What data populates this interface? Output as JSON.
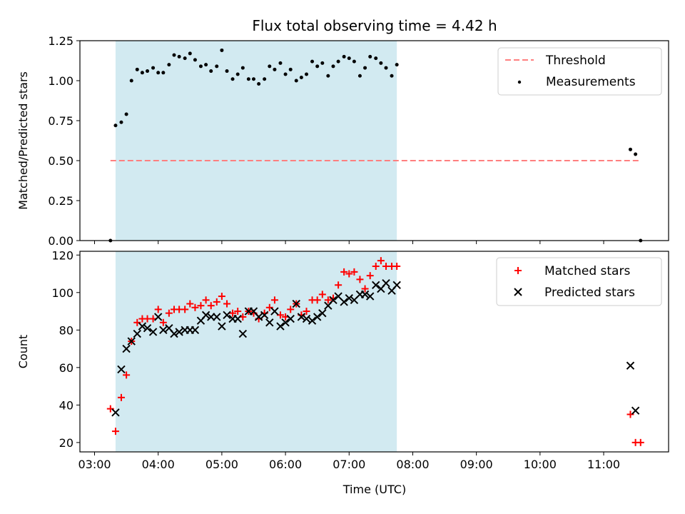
{
  "chart_data": {
    "type": "scatter",
    "title": "Flux total observing time = 4.42 h",
    "xlabel": "Time (UTC)",
    "x_ticks": [
      "03:00",
      "04:00",
      "05:00",
      "06:00",
      "07:00",
      "08:00",
      "09:00",
      "10:00",
      "11:00"
    ],
    "x_tick_hours": [
      3,
      4,
      5,
      6,
      7,
      8,
      9,
      10,
      11
    ],
    "x_range_hours": [
      2.77,
      12.02
    ],
    "shaded_region_hours": [
      3.33,
      7.75
    ],
    "colors": {
      "shade": "#add8e6",
      "threshold": "#ff7f7f",
      "measurements": "#000000",
      "matched": "#ff0000",
      "predicted": "#000000"
    },
    "panels": [
      {
        "ylabel": "Matched/Predicted stars",
        "ylim": [
          0,
          1.25
        ],
        "y_ticks": [
          "0.00",
          "0.25",
          "0.50",
          "0.75",
          "1.00",
          "1.25"
        ],
        "y_tick_values": [
          0,
          0.25,
          0.5,
          0.75,
          1.0,
          1.25
        ],
        "legend_position": "upper right",
        "threshold": {
          "name": "Threshold",
          "value": 0.5,
          "x_range_hours": [
            3.25,
            11.58
          ]
        },
        "series": [
          {
            "name": "Measurements",
            "marker": "dot",
            "x_hours": [
              3.25,
              3.33,
              3.42,
              3.5,
              3.58,
              3.67,
              3.75,
              3.83,
              3.92,
              4.0,
              4.08,
              4.17,
              4.25,
              4.33,
              4.42,
              4.5,
              4.58,
              4.67,
              4.75,
              4.83,
              4.92,
              5.0,
              5.08,
              5.17,
              5.25,
              5.33,
              5.42,
              5.5,
              5.58,
              5.67,
              5.75,
              5.83,
              5.92,
              6.0,
              6.08,
              6.17,
              6.25,
              6.33,
              6.42,
              6.5,
              6.58,
              6.67,
              6.75,
              6.83,
              6.92,
              7.0,
              7.08,
              7.17,
              7.25,
              7.33,
              7.42,
              7.5,
              7.58,
              7.67,
              7.75,
              11.42,
              11.5,
              11.58
            ],
            "y": [
              0.0,
              0.72,
              0.74,
              0.79,
              1.0,
              1.07,
              1.05,
              1.06,
              1.08,
              1.05,
              1.05,
              1.1,
              1.16,
              1.15,
              1.14,
              1.17,
              1.13,
              1.09,
              1.1,
              1.06,
              1.09,
              1.19,
              1.06,
              1.01,
              1.04,
              1.08,
              1.01,
              1.01,
              0.98,
              1.01,
              1.09,
              1.07,
              1.11,
              1.04,
              1.07,
              1.0,
              1.02,
              1.04,
              1.12,
              1.09,
              1.11,
              1.03,
              1.09,
              1.12,
              1.15,
              1.14,
              1.12,
              1.03,
              1.08,
              1.15,
              1.14,
              1.11,
              1.08,
              1.03,
              1.1,
              0.57,
              0.54,
              0.0
            ]
          }
        ]
      },
      {
        "ylabel": "Count",
        "ylim": [
          15,
          122
        ],
        "y_ticks": [
          "20",
          "40",
          "60",
          "80",
          "100",
          "120"
        ],
        "y_tick_values": [
          20,
          40,
          60,
          80,
          100,
          120
        ],
        "legend_position": "upper right",
        "series": [
          {
            "name": "Matched stars",
            "marker": "plus",
            "x_hours": [
              3.25,
              3.33,
              3.42,
              3.5,
              3.58,
              3.67,
              3.75,
              3.83,
              3.92,
              4.0,
              4.08,
              4.17,
              4.25,
              4.33,
              4.42,
              4.5,
              4.58,
              4.67,
              4.75,
              4.83,
              4.92,
              5.0,
              5.08,
              5.17,
              5.25,
              5.33,
              5.42,
              5.5,
              5.58,
              5.67,
              5.75,
              5.83,
              5.92,
              6.0,
              6.08,
              6.17,
              6.25,
              6.33,
              6.42,
              6.5,
              6.58,
              6.67,
              6.75,
              6.83,
              6.92,
              7.0,
              7.08,
              7.17,
              7.25,
              7.33,
              7.42,
              7.5,
              7.58,
              7.67,
              7.75,
              11.42,
              11.5,
              11.58
            ],
            "y": [
              38,
              26,
              44,
              56,
              74,
              84,
              86,
              86,
              86,
              91,
              84,
              89,
              91,
              91,
              91,
              94,
              92,
              93,
              96,
              93,
              95,
              98,
              94,
              89,
              90,
              87,
              90,
              89,
              86,
              89,
              92,
              96,
              88,
              87,
              91,
              94,
              88,
              90,
              96,
              96,
              99,
              96,
              97,
              104,
              111,
              110,
              111,
              107,
              102,
              109,
              114,
              117,
              114,
              114,
              114,
              35,
              20,
              20
            ]
          },
          {
            "name": "Predicted stars",
            "marker": "x",
            "x_hours": [
              3.33,
              3.42,
              3.5,
              3.58,
              3.67,
              3.75,
              3.83,
              3.92,
              4.0,
              4.08,
              4.17,
              4.25,
              4.33,
              4.42,
              4.5,
              4.58,
              4.67,
              4.75,
              4.83,
              4.92,
              5.0,
              5.08,
              5.17,
              5.25,
              5.33,
              5.42,
              5.5,
              5.58,
              5.67,
              5.75,
              5.83,
              5.92,
              6.0,
              6.08,
              6.17,
              6.25,
              6.33,
              6.42,
              6.5,
              6.58,
              6.67,
              6.75,
              6.83,
              6.92,
              7.0,
              7.08,
              7.17,
              7.25,
              7.33,
              7.42,
              7.5,
              7.58,
              7.67,
              7.75,
              11.42,
              11.5
            ],
            "y": [
              36,
              59,
              70,
              74,
              78,
              82,
              81,
              79,
              87,
              80,
              81,
              78,
              79,
              80,
              80,
              80,
              85,
              88,
              87,
              87,
              82,
              88,
              86,
              86,
              78,
              90,
              90,
              87,
              88,
              84,
              90,
              82,
              84,
              86,
              94,
              87,
              86,
              85,
              87,
              89,
              93,
              96,
              98,
              95,
              97,
              96,
              99,
              99,
              98,
              104,
              102,
              105,
              101,
              104,
              61,
              37
            ]
          }
        ]
      }
    ]
  }
}
